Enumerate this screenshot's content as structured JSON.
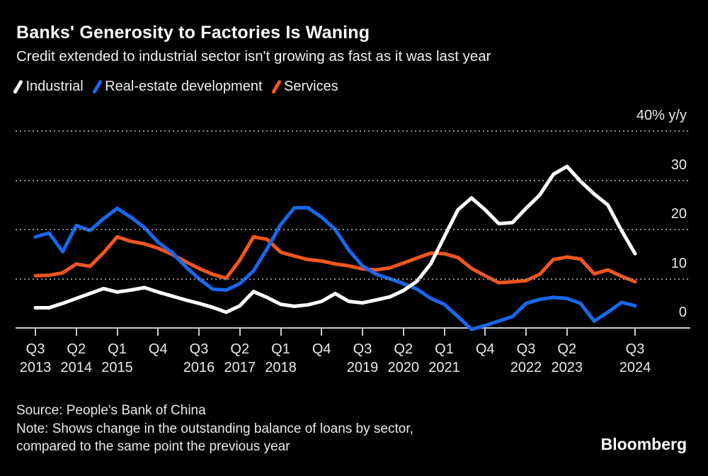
{
  "header": {
    "title": "Banks' Generosity to Factories Is Waning",
    "subtitle": "Credit extended to industrial sector isn't growing as fast as it was last year"
  },
  "legend": {
    "items": [
      {
        "label": "Industrial",
        "color": "#ffffff"
      },
      {
        "label": "Real-estate development",
        "color": "#1a67ec"
      },
      {
        "label": "Services",
        "color": "#f2561e"
      }
    ]
  },
  "chart_data": {
    "type": "line",
    "title": "Banks' Generosity to Factories Is Waning",
    "subtitle": "Credit extended to industrial sector isn't growing as fast as it was last year",
    "unit": "% y/y",
    "ylim": [
      0,
      40
    ],
    "grid": "horizontal dotted",
    "legend_position": "top-left",
    "x_range": [
      "2013 Q3",
      "2024 Q3"
    ],
    "quarters": [
      "Q3 2013",
      "Q4 2013",
      "Q1 2014",
      "Q2 2014",
      "Q3 2014",
      "Q4 2014",
      "Q1 2015",
      "Q2 2015",
      "Q3 2015",
      "Q4 2015",
      "Q1 2016",
      "Q2 2016",
      "Q3 2016",
      "Q4 2016",
      "Q1 2017",
      "Q2 2017",
      "Q3 2017",
      "Q4 2017",
      "Q1 2018",
      "Q2 2018",
      "Q3 2018",
      "Q4 2018",
      "Q1 2019",
      "Q2 2019",
      "Q3 2019",
      "Q4 2019",
      "Q1 2020",
      "Q2 2020",
      "Q3 2020",
      "Q4 2020",
      "Q1 2021",
      "Q2 2021",
      "Q3 2021",
      "Q4 2021",
      "Q1 2022",
      "Q2 2022",
      "Q3 2022",
      "Q4 2022",
      "Q1 2023",
      "Q2 2023",
      "Q3 2023",
      "Q4 2023",
      "Q1 2024",
      "Q2 2024",
      "Q3 2024"
    ],
    "series": [
      {
        "name": "Industrial",
        "color": "#ffffff",
        "values": [
          4.1,
          4.1,
          5,
          6,
          7,
          8,
          7.3,
          7.7,
          8.2,
          7.3,
          6.5,
          5.7,
          5,
          4.2,
          3.2,
          4.5,
          7.4,
          6.2,
          4.8,
          4.4,
          4.7,
          5.4,
          7,
          5.4,
          5.1,
          5.7,
          6.3,
          7.6,
          9.5,
          13,
          18.5,
          24,
          26.4,
          24,
          21.2,
          21.4,
          24.3,
          27,
          31.2,
          32.8,
          29.8,
          27.2,
          25,
          19.8,
          15.1
        ]
      },
      {
        "name": "Real-estate development",
        "color": "#1a67ec",
        "values": [
          18.5,
          19.3,
          15.5,
          20.8,
          19.8,
          22.2,
          24.3,
          22.5,
          20.4,
          17.4,
          15.4,
          12.5,
          10,
          7.9,
          7.7,
          9,
          11.6,
          16.1,
          21,
          24.4,
          24.4,
          22.5,
          20,
          15.8,
          12.6,
          10.9,
          10,
          9,
          7.9,
          6,
          4.8,
          2.3,
          -0.3,
          0.5,
          1.4,
          2.3,
          5,
          5.8,
          6.2,
          6,
          5,
          1.4,
          3.2,
          5.2,
          4.5
        ]
      },
      {
        "name": "Services",
        "color": "#f2561e",
        "values": [
          10.6,
          10.7,
          11.2,
          13,
          12.5,
          15.3,
          18.5,
          17.6,
          17.1,
          16.2,
          15,
          13.5,
          12.1,
          10.9,
          10.1,
          13.8,
          18.5,
          18,
          15.4,
          14.6,
          13.9,
          13.6,
          13,
          12.6,
          12,
          11.8,
          12.2,
          13.2,
          14.2,
          15.2,
          15.1,
          14.3,
          12.1,
          10.6,
          9.2,
          9.4,
          9.6,
          10.9,
          13.9,
          14.4,
          14,
          11,
          11.8,
          10.5,
          9.4
        ]
      }
    ],
    "yticks": [
      {
        "value": 40,
        "label": "40% y/y"
      },
      {
        "value": 30,
        "label": "30"
      },
      {
        "value": 20,
        "label": "20"
      },
      {
        "value": 10,
        "label": "10"
      },
      {
        "value": 0,
        "label": "0"
      }
    ],
    "xticks": [
      {
        "index": 0,
        "quarter": "Q3",
        "year": "2013"
      },
      {
        "index": 3,
        "quarter": "Q2",
        "year": "2014"
      },
      {
        "index": 6,
        "quarter": "Q1",
        "year": "2015"
      },
      {
        "index": 9,
        "quarter": "Q4",
        "year": ""
      },
      {
        "index": 12,
        "quarter": "Q3",
        "year": "2016"
      },
      {
        "index": 15,
        "quarter": "Q2",
        "year": "2017"
      },
      {
        "index": 18,
        "quarter": "Q1",
        "year": "2018"
      },
      {
        "index": 21,
        "quarter": "Q4",
        "year": ""
      },
      {
        "index": 24,
        "quarter": "Q3",
        "year": "2019"
      },
      {
        "index": 27,
        "quarter": "Q2",
        "year": "2020"
      },
      {
        "index": 30,
        "quarter": "Q1",
        "year": "2021"
      },
      {
        "index": 33,
        "quarter": "Q4",
        "year": ""
      },
      {
        "index": 36,
        "quarter": "Q3",
        "year": "2022"
      },
      {
        "index": 39,
        "quarter": "Q2",
        "year": "2023"
      },
      {
        "index": 44,
        "quarter": "Q3",
        "year": "2024"
      }
    ]
  },
  "footer": {
    "source": "Source: People's Bank of China",
    "note_line1": "Note: Shows change in the outstanding balance of loans by sector,",
    "note_line2": "compared to the same point the previous year",
    "brand": "Bloomberg"
  }
}
